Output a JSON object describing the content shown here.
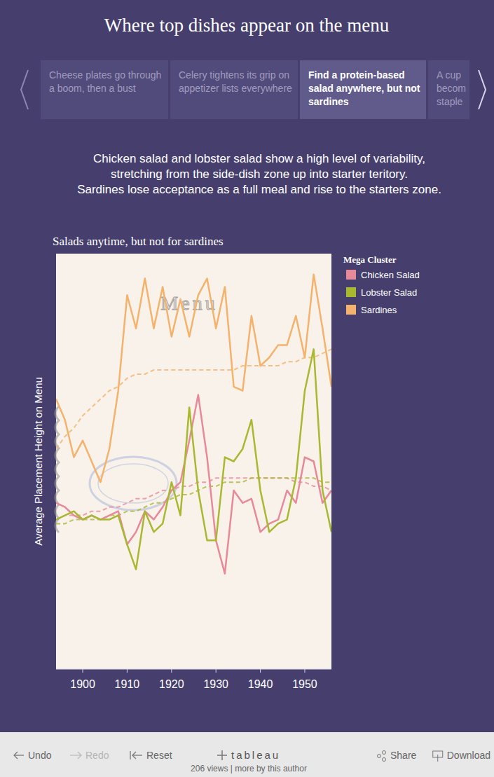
{
  "page": {
    "title": "Where top dishes appear on the menu",
    "story_points": [
      {
        "text": "Cheese plates go through a boom, then a bust",
        "active": false
      },
      {
        "text": "Celery tightens its grip on appetizer lists everywhere",
        "active": false
      },
      {
        "text": "Find a protein-based salad anywhere, but not sardines",
        "active": true
      },
      {
        "text": "A cup becom staple",
        "active": false
      }
    ],
    "caption": [
      "Chicken salad and lobster salad show a high level of variability,",
      "stretching from the side-dish zone up into starter teritory.",
      "Sardines lose acceptance as a full meal and rise to the starters zone."
    ],
    "toolbar": {
      "undo": "Undo",
      "redo": "Redo",
      "reset": "Reset",
      "brand": "tableau",
      "stats": "206 views | more by this author",
      "share": "Share",
      "download": "Download"
    }
  },
  "chart_data": {
    "type": "line",
    "title": "Salads anytime, but not for sardines",
    "background_label": "Menu",
    "y_label": "Average Placement Height on Menu",
    "legend_title": "Mega Cluster",
    "legend": "right",
    "grid": false,
    "tick_labels": "x",
    "x": [
      1894,
      1896,
      1898,
      1900,
      1902,
      1904,
      1906,
      1908,
      1910,
      1912,
      1914,
      1916,
      1918,
      1920,
      1922,
      1924,
      1926,
      1928,
      1930,
      1932,
      1934,
      1936,
      1938,
      1940,
      1942,
      1944,
      1946,
      1948,
      1950,
      1952,
      1954,
      1956
    ],
    "xlim": [
      1894,
      1956
    ],
    "xticks": [
      1900,
      1910,
      1920,
      1930,
      1940,
      1950
    ],
    "ylim": [
      0,
      1
    ],
    "series": [
      {
        "name": "Chicken Salad",
        "color": "#e8899a",
        "line_style": "solid",
        "values": [
          0.4,
          0.39,
          0.37,
          0.36,
          0.37,
          0.36,
          0.37,
          0.38,
          0.3,
          0.33,
          0.38,
          0.36,
          0.39,
          0.43,
          0.45,
          0.55,
          0.66,
          0.51,
          0.31,
          0.23,
          0.43,
          0.4,
          0.41,
          0.33,
          0.35,
          0.36,
          0.43,
          0.4,
          0.51,
          0.5,
          0.4,
          0.43
        ],
        "trend": [
          0.36,
          0.37,
          0.37,
          0.37,
          0.38,
          0.38,
          0.39,
          0.39,
          0.4,
          0.41,
          0.41,
          0.42,
          0.43,
          0.43,
          0.44,
          0.44,
          0.45,
          0.45,
          0.46,
          0.46,
          0.46,
          0.46,
          0.46,
          0.46,
          0.46,
          0.46,
          0.46,
          0.45,
          0.45,
          0.44,
          0.44,
          0.43
        ]
      },
      {
        "name": "Lobster Salad",
        "color": "#a8b92f",
        "line_style": "solid",
        "values": [
          0.36,
          0.37,
          0.38,
          0.36,
          0.37,
          0.36,
          0.36,
          0.37,
          0.3,
          0.24,
          0.38,
          0.33,
          0.35,
          0.45,
          0.37,
          0.63,
          0.43,
          0.31,
          0.31,
          0.51,
          0.5,
          0.53,
          0.6,
          0.43,
          0.33,
          0.35,
          0.36,
          0.46,
          0.67,
          0.77,
          0.43,
          0.33
        ],
        "trend": [
          0.35,
          0.35,
          0.36,
          0.36,
          0.36,
          0.36,
          0.37,
          0.37,
          0.38,
          0.38,
          0.39,
          0.4,
          0.4,
          0.41,
          0.42,
          0.42,
          0.43,
          0.44,
          0.44,
          0.45,
          0.45,
          0.45,
          0.46,
          0.46,
          0.46,
          0.46,
          0.46,
          0.46,
          0.46,
          0.46,
          0.45,
          0.45
        ]
      },
      {
        "name": "Sardines",
        "color": "#f4b36c",
        "line_style": "solid",
        "values": [
          0.65,
          0.6,
          0.51,
          0.55,
          0.5,
          0.45,
          0.53,
          0.67,
          0.9,
          0.82,
          0.94,
          0.82,
          0.92,
          0.8,
          0.89,
          0.8,
          0.9,
          0.94,
          0.82,
          0.92,
          0.68,
          0.67,
          0.85,
          0.73,
          0.75,
          0.78,
          0.78,
          0.85,
          0.75,
          0.95,
          0.82,
          0.68
        ],
        "trend": [
          0.53,
          0.56,
          0.58,
          0.61,
          0.63,
          0.65,
          0.67,
          0.68,
          0.7,
          0.71,
          0.71,
          0.72,
          0.72,
          0.72,
          0.72,
          0.72,
          0.72,
          0.72,
          0.72,
          0.72,
          0.72,
          0.73,
          0.73,
          0.73,
          0.73,
          0.73,
          0.74,
          0.74,
          0.75,
          0.75,
          0.76,
          0.77
        ]
      }
    ]
  }
}
